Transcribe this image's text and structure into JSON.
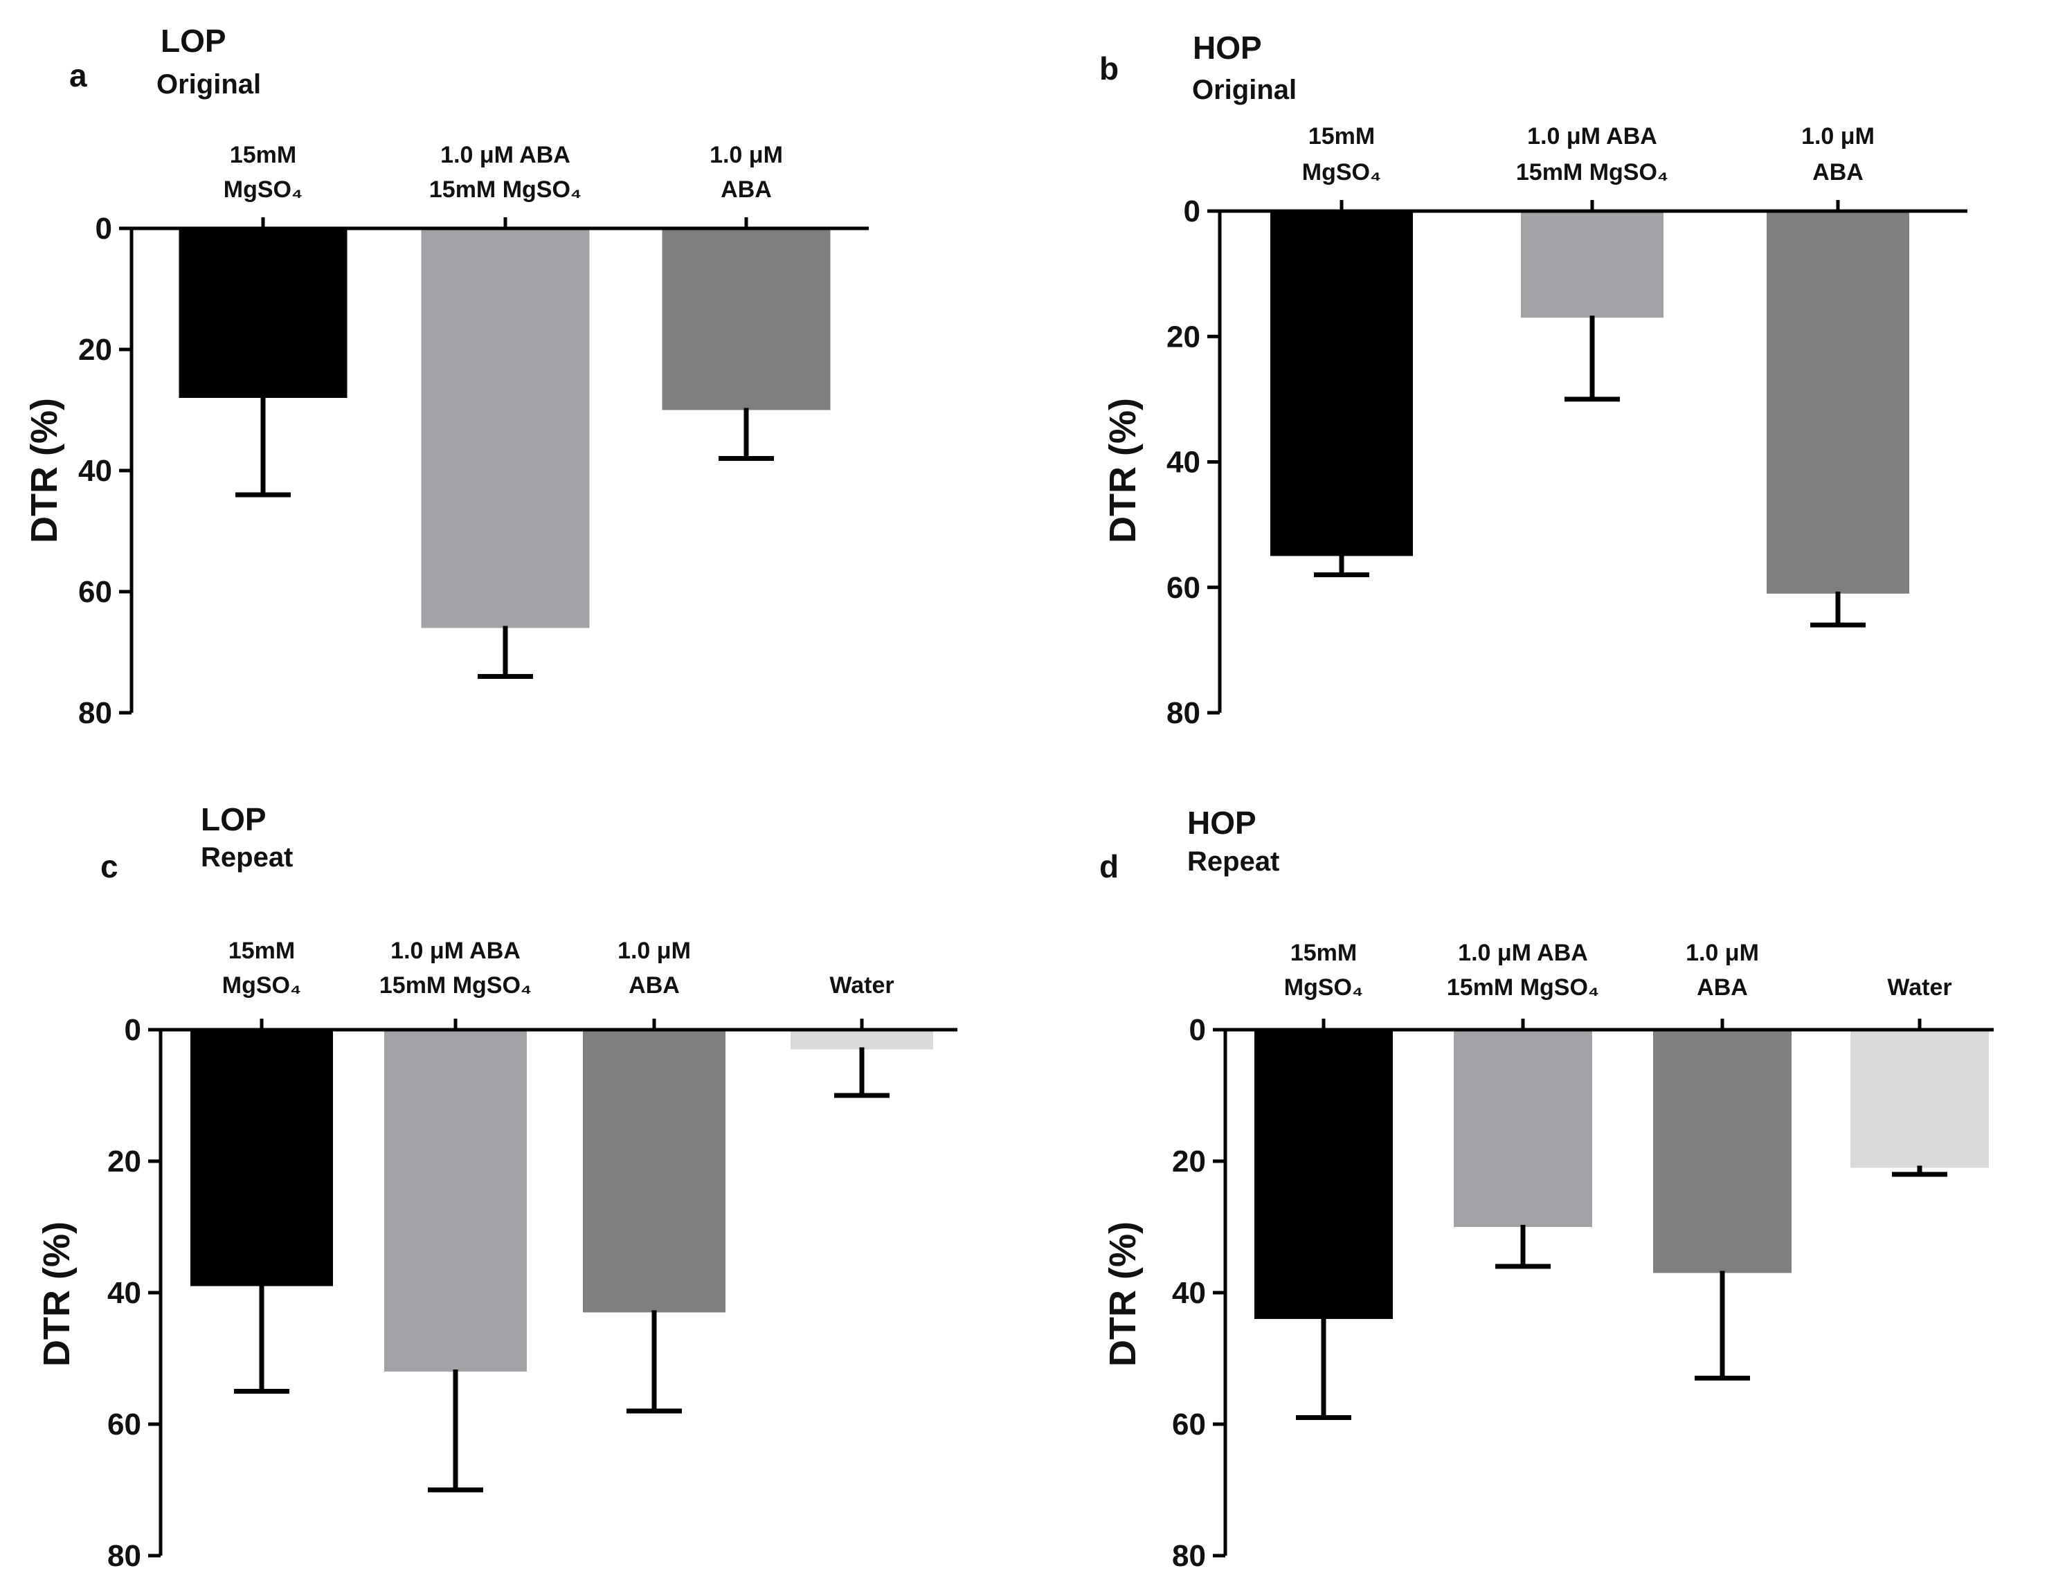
{
  "chart_data": [
    {
      "type": "bar",
      "panel": "a",
      "title": "LOP",
      "subtitle": "Original",
      "ylabel": "DTR (%)",
      "ylim": [
        0,
        80
      ],
      "y_inverted": true,
      "yticks": [
        "0",
        "20",
        "40",
        "60",
        "80"
      ],
      "categories": [
        {
          "line1": "15mM",
          "line2": "MgSO₄"
        },
        {
          "line1": "1.0 μM ABA",
          "line2": "15mM MgSO₄"
        },
        {
          "line1": "1.0 μM",
          "line2": "ABA"
        }
      ],
      "values": [
        28,
        66,
        30
      ],
      "errors": [
        16,
        8,
        8
      ],
      "bar_colors": [
        "#000000",
        "#a3a3a7",
        "#7f7f7f"
      ]
    },
    {
      "type": "bar",
      "panel": "b",
      "title": "HOP",
      "subtitle": "Original",
      "ylabel": "DTR (%)",
      "ylim": [
        0,
        80
      ],
      "y_inverted": true,
      "yticks": [
        "0",
        "20",
        "40",
        "60",
        "80"
      ],
      "categories": [
        {
          "line1": "15mM",
          "line2": "MgSO₄"
        },
        {
          "line1": "1.0 μM ABA",
          "line2": "15mM MgSO₄"
        },
        {
          "line1": "1.0 μM",
          "line2": "ABA"
        }
      ],
      "values": [
        55,
        17,
        61
      ],
      "errors": [
        3,
        13,
        5
      ],
      "bar_colors": [
        "#000000",
        "#a3a3a7",
        "#7f7f7f"
      ]
    },
    {
      "type": "bar",
      "panel": "c",
      "title": "LOP",
      "subtitle": "Repeat",
      "ylabel": "DTR (%)",
      "ylim": [
        0,
        80
      ],
      "y_inverted": true,
      "yticks": [
        "0",
        "20",
        "40",
        "60",
        "80"
      ],
      "categories": [
        {
          "line1": "15mM",
          "line2": "MgSO₄"
        },
        {
          "line1": "1.0 μM ABA",
          "line2": "15mM MgSO₄"
        },
        {
          "line1": "1.0 μM",
          "line2": "ABA"
        },
        {
          "line1": "",
          "line2": "Water"
        }
      ],
      "values": [
        39,
        52,
        43,
        3
      ],
      "errors": [
        16,
        18,
        15,
        7
      ],
      "bar_colors": [
        "#000000",
        "#a3a3a7",
        "#7f7f7f",
        "#d9d9d9"
      ]
    },
    {
      "type": "bar",
      "panel": "d",
      "title": "HOP",
      "subtitle": "Repeat",
      "ylabel": "DTR (%)",
      "ylim": [
        0,
        80
      ],
      "y_inverted": true,
      "yticks": [
        "0",
        "20",
        "40",
        "60",
        "80"
      ],
      "categories": [
        {
          "line1": "15mM",
          "line2": "MgSO₄"
        },
        {
          "line1": "1.0 μM ABA",
          "line2": "15mM MgSO₄"
        },
        {
          "line1": "1.0 μM",
          "line2": "ABA"
        },
        {
          "line1": "",
          "line2": "Water"
        }
      ],
      "values": [
        44,
        30,
        37,
        21
      ],
      "errors": [
        15,
        6,
        16,
        1
      ],
      "bar_colors": [
        "#000000",
        "#a3a3a7",
        "#7f7f7f",
        "#d9d9d9"
      ]
    }
  ]
}
